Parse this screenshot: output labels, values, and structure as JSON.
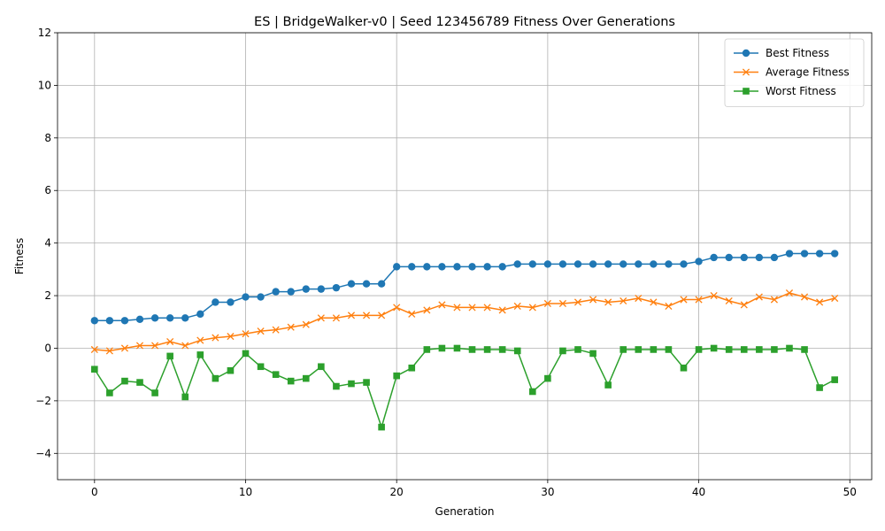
{
  "chart_data": {
    "type": "line",
    "title": "ES | BridgeWalker-v0 | Seed 123456789 Fitness Over Generations",
    "xlabel": "Generation",
    "ylabel": "Fitness",
    "xlim": [
      -2.45,
      51.45
    ],
    "ylim": [
      -5,
      12
    ],
    "xticks": [
      0,
      10,
      20,
      30,
      40,
      50
    ],
    "yticks": [
      -4,
      -2,
      0,
      2,
      4,
      6,
      8,
      10,
      12
    ],
    "grid": true,
    "legend_position": "top-right",
    "x": [
      0,
      1,
      2,
      3,
      4,
      5,
      6,
      7,
      8,
      9,
      10,
      11,
      12,
      13,
      14,
      15,
      16,
      17,
      18,
      19,
      20,
      21,
      22,
      23,
      24,
      25,
      26,
      27,
      28,
      29,
      30,
      31,
      32,
      33,
      34,
      35,
      36,
      37,
      38,
      39,
      40,
      41,
      42,
      43,
      44,
      45,
      46,
      47,
      48,
      49
    ],
    "series": [
      {
        "name": "Best Fitness",
        "color": "#1f77b4",
        "marker": "circle",
        "values": [
          1.05,
          1.05,
          1.05,
          1.1,
          1.15,
          1.15,
          1.15,
          1.3,
          1.75,
          1.75,
          1.95,
          1.95,
          2.15,
          2.15,
          2.25,
          2.25,
          2.3,
          2.45,
          2.45,
          2.45,
          3.1,
          3.1,
          3.1,
          3.1,
          3.1,
          3.1,
          3.1,
          3.1,
          3.2,
          3.2,
          3.2,
          3.2,
          3.2,
          3.2,
          3.2,
          3.2,
          3.2,
          3.2,
          3.2,
          3.2,
          3.3,
          3.45,
          3.45,
          3.45,
          3.45,
          3.45,
          3.6,
          3.6,
          3.6,
          3.6
        ]
      },
      {
        "name": "Average Fitness",
        "color": "#ff7f0e",
        "marker": "x",
        "values": [
          -0.05,
          -0.1,
          0.0,
          0.1,
          0.1,
          0.25,
          0.1,
          0.3,
          0.4,
          0.45,
          0.55,
          0.65,
          0.7,
          0.8,
          0.9,
          1.15,
          1.15,
          1.25,
          1.25,
          1.25,
          1.55,
          1.3,
          1.45,
          1.65,
          1.55,
          1.55,
          1.55,
          1.45,
          1.6,
          1.55,
          1.7,
          1.7,
          1.75,
          1.85,
          1.75,
          1.8,
          1.9,
          1.75,
          1.6,
          1.85,
          1.85,
          2.0,
          1.8,
          1.65,
          1.95,
          1.85,
          2.1,
          1.95,
          1.75,
          1.9
        ]
      },
      {
        "name": "Worst Fitness",
        "color": "#2ca02c",
        "marker": "square",
        "values": [
          -0.8,
          -1.7,
          -1.25,
          -1.3,
          -1.7,
          -0.3,
          -1.85,
          -0.25,
          -1.15,
          -0.85,
          -0.2,
          -0.7,
          -1.0,
          -1.25,
          -1.15,
          -0.7,
          -1.45,
          -1.35,
          -1.3,
          -3.0,
          -1.05,
          -0.75,
          -0.05,
          0.0,
          0.0,
          -0.05,
          -0.05,
          -0.05,
          -0.1,
          -1.65,
          -1.15,
          -0.1,
          -0.05,
          -0.2,
          -1.4,
          -0.05,
          -0.05,
          -0.05,
          -0.05,
          -0.75,
          -0.05,
          0.0,
          -0.05,
          -0.05,
          -0.05,
          -0.05,
          0.0,
          -0.05,
          -1.5,
          -1.2
        ]
      }
    ]
  }
}
